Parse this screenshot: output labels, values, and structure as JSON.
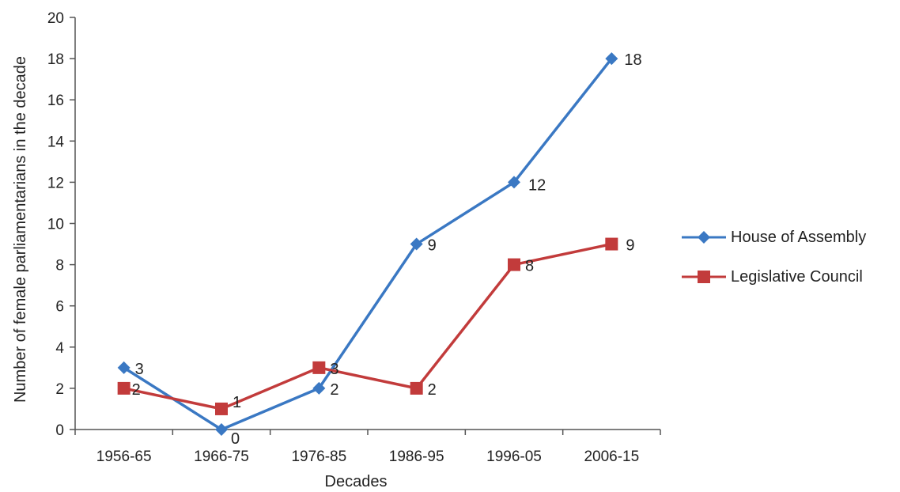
{
  "chart_data": {
    "type": "line",
    "categories": [
      "1956-65",
      "1966-75",
      "1976-85",
      "1986-95",
      "1996-05",
      "2006-15"
    ],
    "series": [
      {
        "name": "House of Assembly",
        "values": [
          3,
          0,
          2,
          9,
          12,
          18
        ],
        "color": "#3a78c3",
        "marker": "diamond"
      },
      {
        "name": "Legislative Council",
        "values": [
          2,
          1,
          3,
          2,
          8,
          9
        ],
        "color": "#c23b3b",
        "marker": "square"
      }
    ],
    "xlabel": "Decades",
    "ylabel": "Number of female parliamentarians in the decade",
    "ylim": [
      0,
      20
    ],
    "yticks": [
      0,
      2,
      4,
      6,
      8,
      10,
      12,
      14,
      16,
      18,
      20
    ],
    "grid": false,
    "legend_position": "right"
  }
}
